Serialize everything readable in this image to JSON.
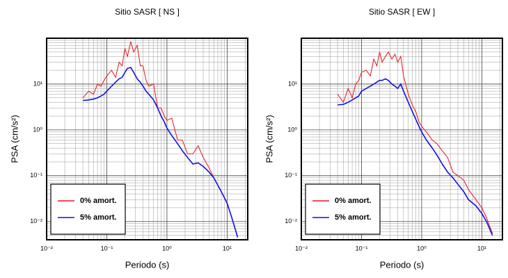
{
  "chart_data": [
    {
      "type": "line",
      "title": "Sitio SASR [ NS ]",
      "xlabel": "Periodo (s)",
      "ylabel": "PSA (cm/s²)",
      "log_x": true,
      "log_y": true,
      "grid": true,
      "legend": "lower left",
      "xlim": [
        0.01,
        22
      ],
      "ylim": [
        0.004,
        100
      ],
      "xticks": [
        {
          "value": 0.01,
          "label": "10⁻²"
        },
        {
          "value": 0.1,
          "label": "10⁻¹"
        },
        {
          "value": 1,
          "label": "10⁰"
        },
        {
          "value": 10,
          "label": "10¹"
        }
      ],
      "yticks": [
        {
          "value": 0.01,
          "label": "10⁻²"
        },
        {
          "value": 0.1,
          "label": "10⁻¹"
        },
        {
          "value": 1,
          "label": "10⁰"
        },
        {
          "value": 10,
          "label": "10¹"
        }
      ],
      "x": [
        0.04,
        0.05,
        0.06,
        0.07,
        0.08,
        0.09,
        0.1,
        0.12,
        0.14,
        0.16,
        0.18,
        0.2,
        0.22,
        0.25,
        0.28,
        0.32,
        0.36,
        0.4,
        0.45,
        0.5,
        0.6,
        0.7,
        0.8,
        0.9,
        1,
        1.2,
        1.5,
        1.8,
        2.2,
        2.7,
        3.3,
        4,
        5,
        6,
        8,
        10,
        12,
        15
      ],
      "series": [
        {
          "name": "0% amort.",
          "color": "#e8141c",
          "values": [
            5,
            7,
            6,
            10,
            9,
            12,
            15,
            20,
            14,
            30,
            25,
            60,
            40,
            85,
            50,
            70,
            25,
            25,
            12,
            9,
            10,
            3,
            3,
            2,
            1.6,
            1.8,
            0.6,
            0.6,
            0.3,
            0.3,
            0.45,
            0.25,
            0.15,
            0.09,
            0.045,
            0.026,
            0.012,
            0.0045
          ]
        },
        {
          "name": "5% amort.",
          "color": "#1010e0",
          "values": [
            4.4,
            4.5,
            4.7,
            5,
            5.5,
            6,
            7,
            9,
            11,
            13,
            14,
            18,
            22,
            23,
            18,
            13,
            11,
            9,
            7,
            6,
            4.5,
            3,
            2,
            1.5,
            1.1,
            0.75,
            0.5,
            0.35,
            0.25,
            0.18,
            0.19,
            0.16,
            0.12,
            0.09,
            0.045,
            0.025,
            0.012,
            0.0045
          ]
        }
      ]
    },
    {
      "type": "line",
      "title": "Sitio SASR [ EW ]",
      "xlabel": "Periodo (s)",
      "ylabel": "PSA (cm/s²)",
      "log_x": true,
      "log_y": true,
      "grid": true,
      "legend": "lower left",
      "xlim": [
        0.01,
        22
      ],
      "ylim": [
        0.004,
        100
      ],
      "xticks": [
        {
          "value": 0.01,
          "label": "10⁻²"
        },
        {
          "value": 0.1,
          "label": "10⁻¹"
        },
        {
          "value": 1,
          "label": "10⁰"
        },
        {
          "value": 10,
          "label": "10¹"
        }
      ],
      "yticks": [
        {
          "value": 0.01,
          "label": "10⁻²"
        },
        {
          "value": 0.1,
          "label": "10⁻¹"
        },
        {
          "value": 1,
          "label": "10⁰"
        },
        {
          "value": 10,
          "label": "10¹"
        }
      ],
      "x": [
        0.04,
        0.05,
        0.06,
        0.07,
        0.08,
        0.09,
        0.1,
        0.12,
        0.14,
        0.16,
        0.18,
        0.2,
        0.22,
        0.25,
        0.28,
        0.32,
        0.36,
        0.4,
        0.45,
        0.5,
        0.6,
        0.7,
        0.8,
        0.9,
        1,
        1.2,
        1.5,
        1.8,
        2.2,
        2.7,
        3.3,
        4,
        5,
        6,
        8,
        10,
        12,
        15
      ],
      "series": [
        {
          "name": "0% amort.",
          "color": "#e8141c",
          "values": [
            6,
            4,
            8,
            5,
            10,
            12,
            18,
            20,
            15,
            35,
            25,
            50,
            30,
            40,
            50,
            35,
            45,
            30,
            40,
            15,
            6,
            3.5,
            2.5,
            1.5,
            1.2,
            0.9,
            0.6,
            0.5,
            0.35,
            0.25,
            0.12,
            0.1,
            0.08,
            0.05,
            0.03,
            0.02,
            0.012,
            0.0055
          ]
        },
        {
          "name": "5% amort.",
          "color": "#1010e0",
          "values": [
            3.5,
            3.6,
            4,
            4.5,
            5,
            5.5,
            7,
            8,
            9,
            10,
            11,
            12,
            12,
            13,
            12,
            10,
            9,
            8,
            10,
            7,
            4,
            2.5,
            1.7,
            1.2,
            0.9,
            0.6,
            0.4,
            0.28,
            0.18,
            0.12,
            0.09,
            0.065,
            0.045,
            0.03,
            0.022,
            0.015,
            0.01,
            0.005
          ]
        }
      ]
    }
  ]
}
